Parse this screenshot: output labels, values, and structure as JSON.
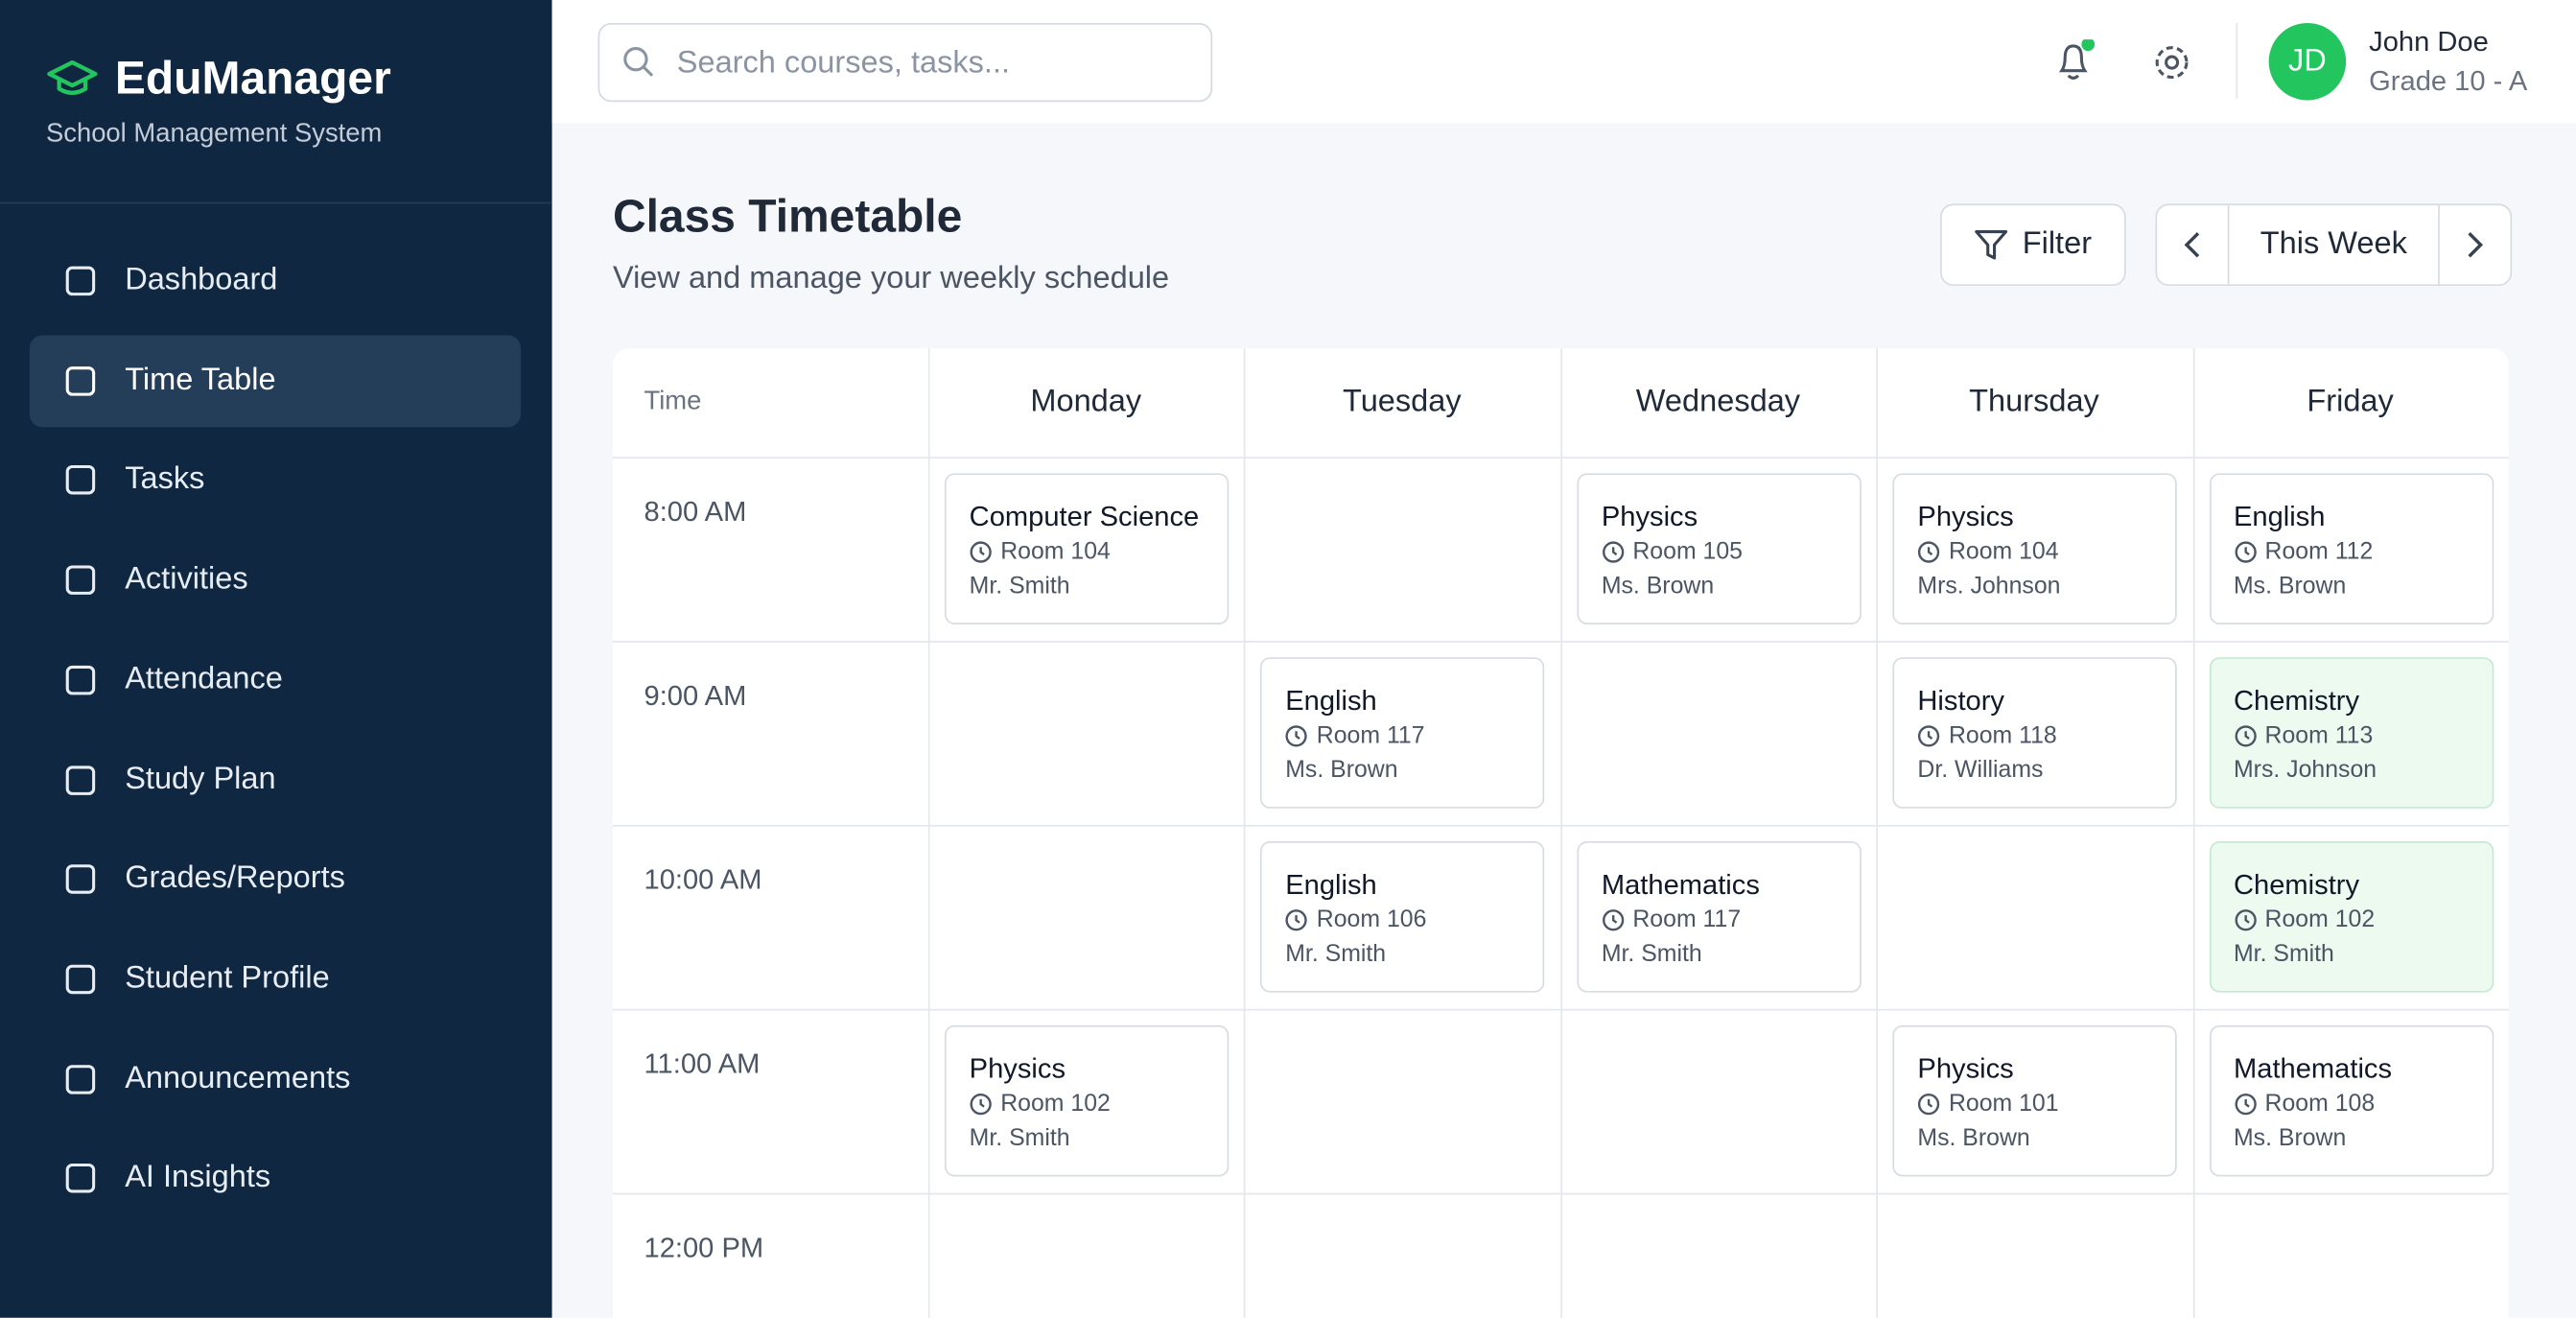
{
  "sidebar": {
    "brand": "EduManager",
    "subtitle": "School Management System",
    "nav": [
      "Dashboard",
      "Time Table",
      "Tasks",
      "Activities",
      "Attendance",
      "Study Plan",
      "Grades/Reports",
      "Student Profile",
      "Announcements",
      "AI Insights"
    ],
    "active": 1
  },
  "header": {
    "search_placeholder": "Search courses, tasks...",
    "user": {
      "initials": "JD",
      "name": "John Doe",
      "grade": "Grade 10 - A"
    }
  },
  "page": {
    "title": "Class Timetable",
    "subtitle": "View and manage your weekly schedule",
    "filter": "Filter",
    "week": "This Week"
  },
  "table": {
    "time_header": "Time",
    "days": [
      "Monday",
      "Tuesday",
      "Wednesday",
      "Thursday",
      "Friday"
    ],
    "rows": [
      {
        "time": "8:00 AM",
        "cells": [
          {
            "subject": "Computer Science",
            "room": "Room 104",
            "teacher": "Mr. Smith"
          },
          null,
          {
            "subject": "Physics",
            "room": "Room 105",
            "teacher": "Ms. Brown"
          },
          {
            "subject": "Physics",
            "room": "Room 104",
            "teacher": "Mrs. Johnson"
          },
          {
            "subject": "English",
            "room": "Room 112",
            "teacher": "Ms. Brown"
          }
        ]
      },
      {
        "time": "9:00 AM",
        "cells": [
          null,
          {
            "subject": "English",
            "room": "Room 117",
            "teacher": "Ms. Brown"
          },
          null,
          {
            "subject": "History",
            "room": "Room 118",
            "teacher": "Dr. Williams"
          },
          {
            "subject": "Chemistry",
            "room": "Room 113",
            "teacher": "Mrs. Johnson",
            "highlight": true
          }
        ]
      },
      {
        "time": "10:00 AM",
        "cells": [
          null,
          {
            "subject": "English",
            "room": "Room 106",
            "teacher": "Mr. Smith"
          },
          {
            "subject": "Mathematics",
            "room": "Room 117",
            "teacher": "Mr. Smith"
          },
          null,
          {
            "subject": "Chemistry",
            "room": "Room 102",
            "teacher": "Mr. Smith",
            "highlight": true
          }
        ]
      },
      {
        "time": "11:00 AM",
        "cells": [
          {
            "subject": "Physics",
            "room": "Room 102",
            "teacher": "Mr. Smith"
          },
          null,
          null,
          {
            "subject": "Physics",
            "room": "Room 101",
            "teacher": "Ms. Brown"
          },
          {
            "subject": "Mathematics",
            "room": "Room 108",
            "teacher": "Ms. Brown"
          }
        ]
      },
      {
        "time": "12:00 PM",
        "cells": [
          null,
          null,
          null,
          null,
          null
        ]
      }
    ]
  }
}
